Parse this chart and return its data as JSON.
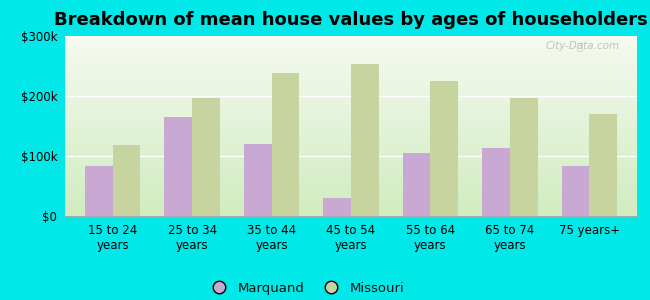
{
  "title": "Breakdown of mean house values by ages of householders",
  "categories": [
    "15 to 24\nyears",
    "25 to 34\nyears",
    "35 to 44\nyears",
    "45 to 54\nyears",
    "55 to 64\nyears",
    "65 to 74\nyears",
    "75 years+"
  ],
  "marquand_values": [
    83000,
    165000,
    120000,
    30000,
    105000,
    113000,
    83000
  ],
  "missouri_values": [
    118000,
    197000,
    238000,
    253000,
    225000,
    197000,
    170000
  ],
  "marquand_color": "#c9a8d4",
  "missouri_color": "#c8d4a0",
  "background_color": "#00e8e8",
  "plot_bg": "#e8f5e0",
  "ylim": [
    0,
    300000
  ],
  "yticks": [
    0,
    100000,
    200000,
    300000
  ],
  "ytick_labels": [
    "$0",
    "$100k",
    "$200k",
    "$300k"
  ],
  "legend_labels": [
    "Marquand",
    "Missouri"
  ],
  "watermark": "City-Data.com",
  "title_fontsize": 13,
  "tick_fontsize": 8.5,
  "legend_fontsize": 9.5
}
